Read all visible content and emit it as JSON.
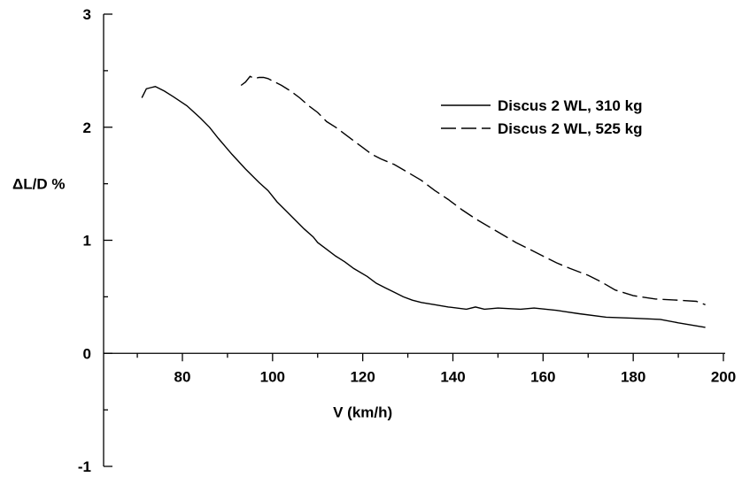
{
  "chart_data": {
    "type": "line",
    "xlabel": "V (km/h)",
    "ylabel": "ΔL/D %",
    "xlim": [
      60,
      200
    ],
    "ylim": [
      -1,
      3
    ],
    "x_ticks": [
      80,
      100,
      120,
      140,
      160,
      180,
      200
    ],
    "x_tick_labels": [
      "80",
      "100",
      "120",
      "140",
      "160",
      "180",
      "200"
    ],
    "y_ticks": [
      -1,
      0,
      1,
      2,
      3
    ],
    "y_tick_labels": [
      "-1",
      "0",
      "1",
      "2",
      "3"
    ],
    "legend_position": "top-right",
    "grid": false,
    "series": [
      {
        "name": "Discus 2 WL, 310 kg",
        "dash": "solid",
        "x": [
          71,
          72,
          73,
          74,
          76,
          78,
          81,
          84,
          86,
          88,
          91,
          94,
          97,
          99,
          101,
          103,
          105,
          107,
          109,
          110,
          112,
          114,
          116,
          118,
          121,
          123,
          125,
          127,
          129,
          131,
          133,
          136,
          139,
          143,
          145,
          147,
          150,
          155,
          158,
          163,
          168,
          174,
          180,
          186,
          190,
          196
        ],
        "y": [
          2.26,
          2.34,
          2.35,
          2.36,
          2.32,
          2.27,
          2.19,
          2.08,
          2.0,
          1.9,
          1.76,
          1.63,
          1.51,
          1.44,
          1.34,
          1.26,
          1.18,
          1.1,
          1.03,
          0.98,
          0.92,
          0.86,
          0.81,
          0.75,
          0.68,
          0.62,
          0.58,
          0.54,
          0.5,
          0.47,
          0.45,
          0.43,
          0.41,
          0.39,
          0.41,
          0.39,
          0.4,
          0.39,
          0.4,
          0.38,
          0.35,
          0.32,
          0.31,
          0.3,
          0.27,
          0.23
        ]
      },
      {
        "name": "Discus 2 WL, 525 kg",
        "dash": "dashed",
        "x": [
          93,
          94,
          95,
          96,
          97,
          98,
          99,
          100,
          102,
          104,
          106,
          108,
          110,
          112,
          114,
          116,
          118,
          120,
          122,
          124,
          127,
          130,
          133,
          136,
          139,
          142,
          145,
          148,
          151,
          154,
          157,
          160,
          163,
          166,
          170,
          173,
          176,
          180,
          185,
          190,
          194,
          196
        ],
        "y": [
          2.37,
          2.4,
          2.45,
          2.43,
          2.44,
          2.44,
          2.43,
          2.41,
          2.37,
          2.32,
          2.26,
          2.19,
          2.13,
          2.05,
          2.0,
          1.94,
          1.88,
          1.82,
          1.76,
          1.72,
          1.67,
          1.6,
          1.53,
          1.44,
          1.36,
          1.27,
          1.19,
          1.12,
          1.05,
          0.98,
          0.92,
          0.86,
          0.8,
          0.75,
          0.69,
          0.63,
          0.56,
          0.51,
          0.48,
          0.47,
          0.46,
          0.43
        ]
      }
    ]
  }
}
